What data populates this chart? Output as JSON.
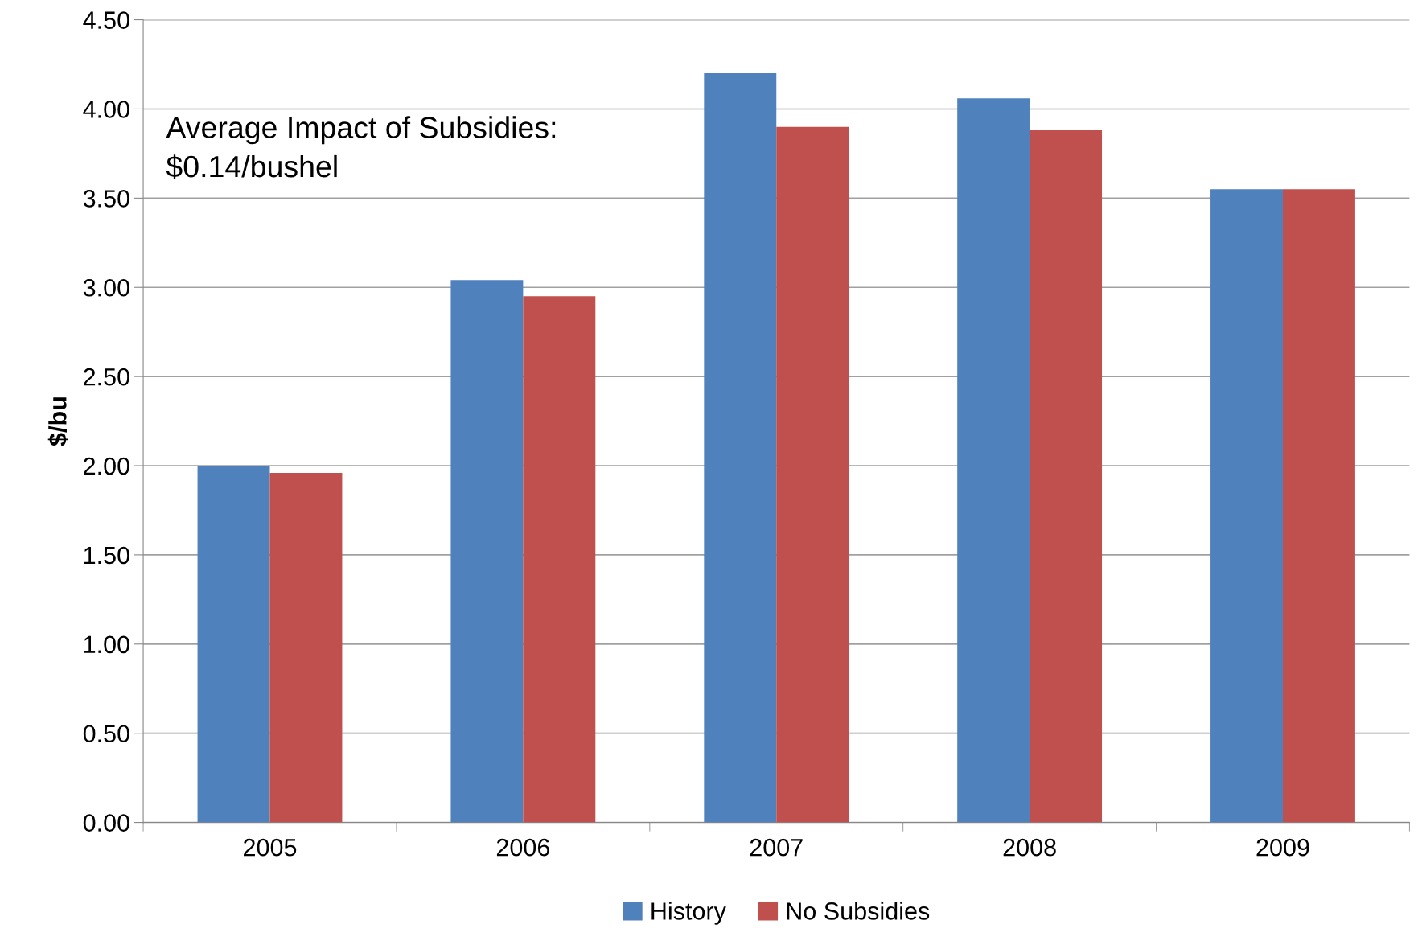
{
  "chart_data": {
    "type": "bar",
    "ylabel": "$/bu",
    "categories": [
      "2005",
      "2006",
      "2007",
      "2008",
      "2009"
    ],
    "series": [
      {
        "name": "History",
        "color": "#4f81bd",
        "values": [
          2.0,
          3.04,
          4.2,
          4.06,
          3.55
        ]
      },
      {
        "name": "No Subsidies",
        "color": "#c0504d",
        "values": [
          1.96,
          2.95,
          3.9,
          3.88,
          3.55
        ]
      }
    ],
    "ylim": [
      0,
      4.5
    ],
    "yticks": [
      {
        "value": 0,
        "label": "0.00"
      },
      {
        "value": 0.5,
        "label": "0.50"
      },
      {
        "value": 1,
        "label": "1.00"
      },
      {
        "value": 1.5,
        "label": "1.50"
      },
      {
        "value": 2,
        "label": "2.00"
      },
      {
        "value": 2.5,
        "label": "2.50"
      },
      {
        "value": 3,
        "label": "3.00"
      },
      {
        "value": 3.5,
        "label": "3.50"
      },
      {
        "value": 4,
        "label": "4.00"
      },
      {
        "value": 4.5,
        "label": "4.50"
      }
    ],
    "grid": "y",
    "legend": "bottom",
    "annotations": [
      "Average Impact of Subsidies:\n$0.14/bushel"
    ]
  }
}
